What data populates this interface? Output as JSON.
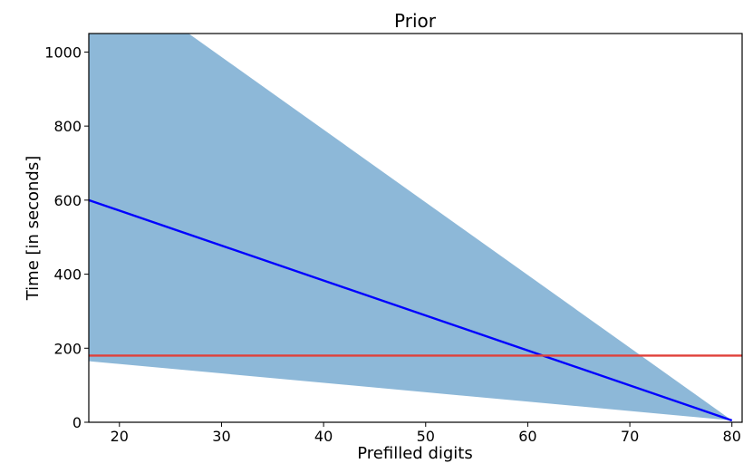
{
  "chart_data": {
    "type": "line",
    "title": "Prior",
    "xlabel": "Prefilled digits",
    "ylabel": "Time [in seconds]",
    "xlim": [
      17,
      81
    ],
    "ylim": [
      0,
      1050
    ],
    "xticks": [
      20,
      30,
      40,
      50,
      60,
      70,
      80
    ],
    "yticks": [
      0,
      200,
      400,
      600,
      800,
      1000
    ],
    "grid": false,
    "legend": "none",
    "band": {
      "color": "#8db8d8",
      "upper": {
        "x": [
          17,
          80
        ],
        "y": [
          1242,
          5
        ]
      },
      "lower": {
        "x": [
          17,
          80
        ],
        "y": [
          165,
          5
        ]
      }
    },
    "series": [
      {
        "x": [
          17,
          80
        ],
        "y": [
          600,
          5
        ],
        "color": "#0000ff"
      },
      {
        "x": [
          17,
          81
        ],
        "y": [
          180,
          180
        ],
        "color": "#e0403a"
      }
    ]
  }
}
